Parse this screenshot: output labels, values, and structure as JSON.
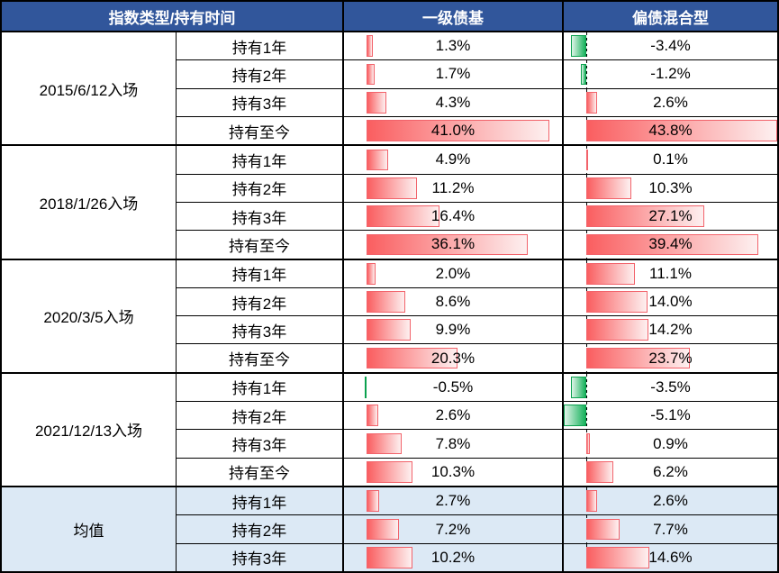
{
  "header": {
    "col_group": "指数类型/持有时间",
    "col_bond": "一级债基",
    "col_hybrid": "偏债混合型"
  },
  "scale": {
    "min": -5.1,
    "max": 43.8
  },
  "colors": {
    "header_bg": "#31569B",
    "header_text": "#FFFFFF",
    "highlight_bg": "#DCE9F5",
    "positive_solid": "#FA5E60",
    "positive_fade": "#FDF0F0",
    "positive_border": "#F2636B",
    "negative_solid": "#17B25C",
    "negative_fade": "#DFF4E8",
    "negative_border": "#0BA14E",
    "grid_line": "#000000"
  },
  "groups": [
    {
      "label": "2015/6/12入场",
      "highlight": false,
      "rows": [
        {
          "period": "持有1年",
          "bond": {
            "value": 1.3,
            "text": "1.3%"
          },
          "hybrid": {
            "value": -3.4,
            "text": "-3.4%"
          }
        },
        {
          "period": "持有2年",
          "bond": {
            "value": 1.7,
            "text": "1.7%"
          },
          "hybrid": {
            "value": -1.2,
            "text": "-1.2%"
          }
        },
        {
          "period": "持有3年",
          "bond": {
            "value": 4.3,
            "text": "4.3%"
          },
          "hybrid": {
            "value": 2.6,
            "text": "2.6%"
          }
        },
        {
          "period": "持有至今",
          "bond": {
            "value": 41.0,
            "text": "41.0%"
          },
          "hybrid": {
            "value": 43.8,
            "text": "43.8%"
          }
        }
      ]
    },
    {
      "label": "2018/1/26入场",
      "highlight": false,
      "rows": [
        {
          "period": "持有1年",
          "bond": {
            "value": 4.9,
            "text": "4.9%"
          },
          "hybrid": {
            "value": 0.1,
            "text": "0.1%"
          }
        },
        {
          "period": "持有2年",
          "bond": {
            "value": 11.2,
            "text": "11.2%"
          },
          "hybrid": {
            "value": 10.3,
            "text": "10.3%"
          }
        },
        {
          "period": "持有3年",
          "bond": {
            "value": 16.4,
            "text": "16.4%"
          },
          "hybrid": {
            "value": 27.1,
            "text": "27.1%"
          }
        },
        {
          "period": "持有至今",
          "bond": {
            "value": 36.1,
            "text": "36.1%"
          },
          "hybrid": {
            "value": 39.4,
            "text": "39.4%"
          }
        }
      ]
    },
    {
      "label": "2020/3/5入场",
      "highlight": false,
      "rows": [
        {
          "period": "持有1年",
          "bond": {
            "value": 2.0,
            "text": "2.0%"
          },
          "hybrid": {
            "value": 11.1,
            "text": "11.1%"
          }
        },
        {
          "period": "持有2年",
          "bond": {
            "value": 8.6,
            "text": "8.6%"
          },
          "hybrid": {
            "value": 14.0,
            "text": "14.0%"
          }
        },
        {
          "period": "持有3年",
          "bond": {
            "value": 9.9,
            "text": "9.9%"
          },
          "hybrid": {
            "value": 14.2,
            "text": "14.2%"
          }
        },
        {
          "period": "持有至今",
          "bond": {
            "value": 20.3,
            "text": "20.3%"
          },
          "hybrid": {
            "value": 23.7,
            "text": "23.7%"
          }
        }
      ]
    },
    {
      "label": "2021/12/13入场",
      "highlight": false,
      "rows": [
        {
          "period": "持有1年",
          "bond": {
            "value": -0.5,
            "text": "-0.5%"
          },
          "hybrid": {
            "value": -3.5,
            "text": "-3.5%"
          }
        },
        {
          "period": "持有2年",
          "bond": {
            "value": 2.6,
            "text": "2.6%"
          },
          "hybrid": {
            "value": -5.1,
            "text": "-5.1%"
          }
        },
        {
          "period": "持有3年",
          "bond": {
            "value": 7.8,
            "text": "7.8%"
          },
          "hybrid": {
            "value": 0.9,
            "text": "0.9%"
          }
        },
        {
          "period": "持有至今",
          "bond": {
            "value": 10.3,
            "text": "10.3%"
          },
          "hybrid": {
            "value": 6.2,
            "text": "6.2%"
          }
        }
      ]
    },
    {
      "label": "均值",
      "highlight": true,
      "rows": [
        {
          "period": "持有1年",
          "bond": {
            "value": 2.7,
            "text": "2.7%"
          },
          "hybrid": {
            "value": 2.6,
            "text": "2.6%"
          }
        },
        {
          "period": "持有2年",
          "bond": {
            "value": 7.2,
            "text": "7.2%"
          },
          "hybrid": {
            "value": 7.7,
            "text": "7.7%"
          }
        },
        {
          "period": "持有3年",
          "bond": {
            "value": 10.2,
            "text": "10.2%"
          },
          "hybrid": {
            "value": 14.6,
            "text": "14.6%"
          }
        }
      ]
    }
  ],
  "chart_data": {
    "type": "table",
    "title": "指数类型/持有时间 — 一级债基 vs 偏债混合型 区间收益(%)",
    "columns": [
      "指数类型",
      "持有时间",
      "一级债基",
      "偏债混合型"
    ],
    "rows": [
      [
        "2015/6/12入场",
        "持有1年",
        1.3,
        -3.4
      ],
      [
        "2015/6/12入场",
        "持有2年",
        1.7,
        -1.2
      ],
      [
        "2015/6/12入场",
        "持有3年",
        4.3,
        2.6
      ],
      [
        "2015/6/12入场",
        "持有至今",
        41.0,
        43.8
      ],
      [
        "2018/1/26入场",
        "持有1年",
        4.9,
        0.1
      ],
      [
        "2018/1/26入场",
        "持有2年",
        11.2,
        10.3
      ],
      [
        "2018/1/26入场",
        "持有3年",
        16.4,
        27.1
      ],
      [
        "2018/1/26入场",
        "持有至今",
        36.1,
        39.4
      ],
      [
        "2020/3/5入场",
        "持有1年",
        2.0,
        11.1
      ],
      [
        "2020/3/5入场",
        "持有2年",
        8.6,
        14.0
      ],
      [
        "2020/3/5入场",
        "持有3年",
        9.9,
        14.2
      ],
      [
        "2020/3/5入场",
        "持有至今",
        20.3,
        23.7
      ],
      [
        "2021/12/13入场",
        "持有1年",
        -0.5,
        -3.5
      ],
      [
        "2021/12/13入场",
        "持有2年",
        2.6,
        -5.1
      ],
      [
        "2021/12/13入场",
        "持有3年",
        7.8,
        0.9
      ],
      [
        "2021/12/13入场",
        "持有至今",
        10.3,
        6.2
      ],
      [
        "均值",
        "持有1年",
        2.7,
        2.6
      ],
      [
        "均值",
        "持有2年",
        7.2,
        7.7
      ],
      [
        "均值",
        "持有3年",
        10.2,
        14.6
      ]
    ],
    "bar_scale": {
      "min": -5.1,
      "max": 43.8,
      "zero_baseline_pct": 10.43
    },
    "style_notes": "in-cell data bars: positive = red gradient left-to-right, negative = green gradient extending left of dashed zero baseline"
  }
}
